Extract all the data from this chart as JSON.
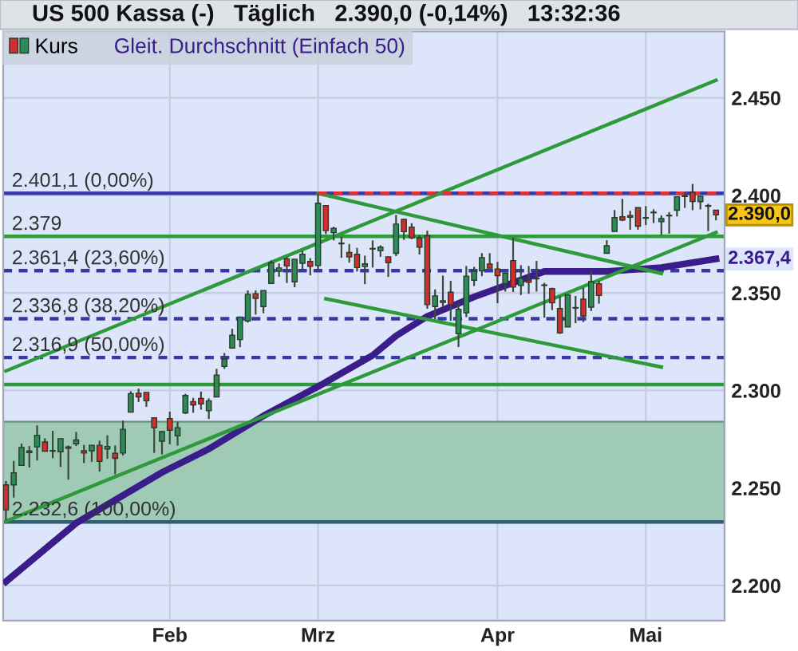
{
  "chart_data": {
    "type": "candlestick",
    "title": "US 500 Kassa (-)   Täglich   2.390,0 (-0,14%)   13:32:36",
    "categories": [
      null,
      null,
      null,
      null,
      null,
      null,
      null,
      null,
      null,
      null,
      null,
      null,
      null,
      null,
      null,
      null,
      null,
      null,
      null,
      null,
      null,
      "Feb",
      null,
      null,
      null,
      null,
      null,
      null,
      null,
      null,
      null,
      null,
      null,
      null,
      null,
      null,
      null,
      null,
      null,
      null,
      "Mrz",
      null,
      null,
      null,
      null,
      null,
      null,
      null,
      null,
      null,
      null,
      null,
      null,
      null,
      null,
      null,
      null,
      null,
      null,
      null,
      null,
      null,
      null,
      "Apr",
      null,
      null,
      null,
      null,
      null,
      null,
      null,
      null,
      null,
      null,
      null,
      null,
      null,
      null,
      null,
      null,
      null,
      null,
      "Mai",
      null,
      null,
      null,
      null,
      null,
      null,
      null,
      null,
      null
    ],
    "ylim": [
      2182,
      2484
    ],
    "yticks": [
      {
        "value": 2200,
        "label": "2.200"
      },
      {
        "value": 2250,
        "label": "2.250"
      },
      {
        "value": 2300,
        "label": "2.300"
      },
      {
        "value": 2350,
        "label": "2.350"
      },
      {
        "value": 2400,
        "label": "2.400"
      },
      {
        "value": 2450,
        "label": "2.450"
      }
    ],
    "grid": true,
    "legend": "top left",
    "series": [
      {
        "name": "Kurs",
        "colors": [
          "#d62c2c",
          "#2e8b57",
          "#2e8b57",
          "#2e8b57",
          "#2e8b57",
          "#d62c2c",
          "#d62c2c",
          "#2e8b57",
          "#d62c2c",
          "#2e8b57",
          "#d62c2c",
          "#2e8b57",
          "#d62c2c",
          "#2e8b57",
          "#d62c2c",
          "#2e8b57",
          "#2e8b57",
          "#d62c2c",
          "#d62c2c",
          "#d62c2c",
          "#2e8b57",
          "#d62c2c",
          "#2e8b57",
          "#2e8b57",
          "#d62c2c",
          "#d62c2c",
          "#2e8b57",
          "#2e8b57",
          "#2e8b57",
          "#2e8b57",
          "#2e8b57",
          "#2e8b57",
          "#d62c2c",
          "#2e8b57",
          "#2e8b57",
          "#2e8b57",
          "#d62c2c",
          "#2e8b57",
          "#2e8b57",
          "#d62c2c",
          "#2e8b57",
          "#d62c2c",
          "#2e8b57",
          "#2e8b57",
          "#d62c2c",
          "#d62c2c",
          "#2e8b57",
          "#2e8b57",
          "#2e8b57",
          "#d62c2c",
          "#2e8b57",
          "#d62c2c",
          "#d62c2c",
          "#d62c2c",
          "#d62c2c",
          "#2e8b57",
          "#2e8b57",
          "#d62c2c",
          "#2e8b57",
          "#2e8b57",
          "#2e8b57",
          "#2e8b57",
          "#d62c2c",
          "#d62c2c",
          "#2e8b57",
          "#d62c2c",
          "#2e8b57",
          "#d62c2c",
          "#2e8b57",
          "#d62c2c",
          "#d62c2c",
          "#d62c2c",
          "#2e8b57",
          "#d62c2c",
          "#d62c2c",
          "#2e8b57",
          "#d62c2c",
          "#2e8b57",
          "#2e8b57",
          "#d62c2c",
          "#d62c2c",
          "#d62c2c",
          "#d62c2c",
          "#2e8b57",
          "#2e8b57",
          "#d62c2c",
          "#2e8b57",
          "#d62c2c",
          "#d62c2c",
          "#2e8b57",
          "#d62c2c",
          "#d62c2c"
        ],
        "ohlc": [
          [
            2251.6,
            2253.6,
            2233.6,
            2238.8
          ],
          [
            2251.6,
            2263.9,
            2245.1,
            2257.8
          ],
          [
            2261.6,
            2272.8,
            2261.6,
            2270.8
          ],
          [
            2268.2,
            2271.5,
            2260.5,
            2269.0
          ],
          [
            2271.1,
            2282.1,
            2264.1,
            2277.0
          ],
          [
            2273.6,
            2275.5,
            2268.8,
            2268.9
          ],
          [
            2269.0,
            2279.3,
            2265.3,
            2268.9
          ],
          [
            2268.6,
            2275.3,
            2260.8,
            2275.3
          ],
          [
            2271.1,
            2271.8,
            2254.3,
            2270.4
          ],
          [
            2272.7,
            2278.7,
            2271.5,
            2274.6
          ],
          [
            2269.1,
            2272.1,
            2262.8,
            2267.9
          ],
          [
            2269.1,
            2272.0,
            2263.4,
            2271.9
          ],
          [
            2271.9,
            2274.3,
            2258.4,
            2263.7
          ],
          [
            2270.0,
            2277.0,
            2265.0,
            2271.3
          ],
          [
            2267.8,
            2271.8,
            2257.0,
            2265.2
          ],
          [
            2267.9,
            2284.6,
            2266.7,
            2280.1
          ],
          [
            2288.9,
            2299.6,
            2288.9,
            2298.4
          ],
          [
            2298.6,
            2301.0,
            2294.1,
            2296.7
          ],
          [
            2299.0,
            2299.0,
            2291.6,
            2294.7
          ],
          [
            2286.0,
            2286.0,
            2268.0,
            2280.9
          ],
          [
            2274.0,
            2279.1,
            2267.2,
            2278.9
          ],
          [
            2285.6,
            2289.1,
            2272.4,
            2279.6
          ],
          [
            2276.7,
            2284.0,
            2271.7,
            2280.9
          ],
          [
            2288.5,
            2298.3,
            2287.9,
            2297.4
          ],
          [
            2294.3,
            2296.2,
            2288.6,
            2292.6
          ],
          [
            2295.9,
            2299.4,
            2290.2,
            2293.1
          ],
          [
            2289.6,
            2295.9,
            2285.4,
            2294.7
          ],
          [
            2296.7,
            2311.1,
            2296.6,
            2307.9
          ],
          [
            2312.3,
            2319.2,
            2311.1,
            2316.1
          ],
          [
            2321.7,
            2331.6,
            2321.4,
            2328.3
          ],
          [
            2326.1,
            2337.6,
            2322.2,
            2337.6
          ],
          [
            2335.6,
            2351.3,
            2334.8,
            2349.3
          ],
          [
            2349.6,
            2351.3,
            2338.9,
            2347.2
          ],
          [
            2343.0,
            2351.2,
            2339.6,
            2351.2
          ],
          [
            2354.9,
            2366.7,
            2354.9,
            2365.4
          ],
          [
            2361.1,
            2365.1,
            2358.3,
            2362.8
          ],
          [
            2367.5,
            2368.3,
            2355.1,
            2363.8
          ],
          [
            2355.7,
            2367.3,
            2352.9,
            2367.3
          ],
          [
            2365.2,
            2371.5,
            2361.9,
            2369.8
          ],
          [
            2366.1,
            2367.8,
            2359.0,
            2363.6
          ],
          [
            2364.0,
            2401.1,
            2362.0,
            2396.0
          ],
          [
            2394.8,
            2394.8,
            2380.2,
            2381.9
          ],
          [
            2380.9,
            2383.9,
            2376.9,
            2383.1
          ],
          [
            2375.2,
            2378.8,
            2368.0,
            2375.3
          ],
          [
            2370.7,
            2375.1,
            2365.5,
            2368.4
          ],
          [
            2369.8,
            2373.1,
            2361.0,
            2363.0
          ],
          [
            2363.5,
            2369.1,
            2354.5,
            2364.9
          ],
          [
            2372.5,
            2376.9,
            2363.0,
            2372.6
          ],
          [
            2371.6,
            2374.4,
            2368.5,
            2373.5
          ],
          [
            2368.5,
            2368.6,
            2358.2,
            2365.5
          ],
          [
            2370.3,
            2390.0,
            2368.9,
            2385.3
          ],
          [
            2387.7,
            2388.1,
            2377.2,
            2381.4
          ],
          [
            2383.7,
            2385.7,
            2377.6,
            2378.3
          ],
          [
            2378.2,
            2379.6,
            2369.7,
            2373.5
          ],
          [
            2379.3,
            2381.9,
            2341.9,
            2344.0
          ],
          [
            2343.0,
            2351.8,
            2336.5,
            2348.5
          ],
          [
            2345.1,
            2358.9,
            2342.1,
            2346.0
          ],
          [
            2350.4,
            2356.2,
            2335.7,
            2344.0
          ],
          [
            2329.1,
            2344.9,
            2322.3,
            2341.6
          ],
          [
            2339.8,
            2363.8,
            2337.6,
            2358.6
          ],
          [
            2356.5,
            2363.4,
            2353.5,
            2361.1
          ],
          [
            2361.3,
            2370.4,
            2358.6,
            2368.1
          ],
          [
            2364.8,
            2370.4,
            2362.6,
            2362.7
          ],
          [
            2362.3,
            2365.9,
            2344.7,
            2358.8
          ],
          [
            2354.8,
            2360.5,
            2350.7,
            2360.2
          ],
          [
            2366.6,
            2378.4,
            2350.5,
            2353.0
          ],
          [
            2353.8,
            2364.2,
            2348.9,
            2357.5
          ],
          [
            2356.6,
            2363.8,
            2349.6,
            2355.5
          ],
          [
            2357.2,
            2366.4,
            2350.7,
            2357.2
          ],
          [
            2353.9,
            2355.2,
            2337.3,
            2353.8
          ],
          [
            2352.2,
            2352.7,
            2341.2,
            2344.9
          ],
          [
            2342.0,
            2348.3,
            2329.0,
            2329.5
          ],
          [
            2332.6,
            2349.1,
            2332.5,
            2349.0
          ],
          [
            2342.5,
            2348.4,
            2334.5,
            2342.2
          ],
          [
            2346.8,
            2352.6,
            2335.1,
            2338.2
          ],
          [
            2342.7,
            2361.4,
            2340.7,
            2355.8
          ],
          [
            2354.7,
            2356.2,
            2344.5,
            2348.7
          ],
          [
            2370.3,
            2377.0,
            2370.3,
            2374.2
          ],
          [
            2381.5,
            2392.5,
            2381.2,
            2388.6
          ],
          [
            2389.0,
            2398.2,
            2386.8,
            2387.4
          ],
          [
            2389.7,
            2392.1,
            2382.4,
            2388.8
          ],
          [
            2393.7,
            2393.7,
            2382.4,
            2384.2
          ],
          [
            2388.5,
            2394.5,
            2384.8,
            2388.3
          ],
          [
            2391.1,
            2392.9,
            2385.8,
            2391.2
          ],
          [
            2386.5,
            2389.8,
            2379.8,
            2388.1
          ],
          [
            2389.8,
            2391.4,
            2380.4,
            2389.5
          ],
          [
            2392.4,
            2399.3,
            2389.2,
            2399.3
          ],
          [
            2399.9,
            2401.4,
            2393.6,
            2399.4
          ],
          [
            2401.6,
            2405.9,
            2392.4,
            2396.9
          ],
          [
            2396.8,
            2399.7,
            2392.8,
            2399.6
          ],
          [
            2394.8,
            2395.7,
            2381.7,
            2394.4
          ],
          [
            2392.4,
            2392.4,
            2387.2,
            2390.0
          ]
        ]
      },
      {
        "name": "Gleit. Durchschnitt (Einfach 50)",
        "type": "line",
        "color": "#3a1d8a",
        "values": [
          2202,
          null,
          null,
          null,
          null,
          null,
          null,
          null,
          null,
          2232,
          null,
          null,
          null,
          null,
          null,
          null,
          null,
          null,
          null,
          null,
          2258,
          null,
          null,
          null,
          null,
          null,
          2270,
          null,
          null,
          null,
          null,
          null,
          null,
          2287,
          null,
          null,
          null,
          null,
          null,
          null,
          2302,
          null,
          null,
          null,
          null,
          null,
          null,
          2318,
          null,
          null,
          2328,
          null,
          null,
          null,
          2338,
          null,
          null,
          null,
          null,
          null,
          2348,
          null,
          null,
          null,
          null,
          null,
          null,
          null,
          null,
          2361,
          null,
          null,
          null,
          null,
          null,
          null,
          null,
          2361,
          null,
          null,
          null,
          null,
          null,
          null,
          2363,
          null,
          null,
          null,
          null,
          null,
          null,
          2367.4
        ]
      },
      {
        "type": "line",
        "color": "#2e9a3a",
        "values": [
          2310,
          null,
          null,
          null,
          null,
          null,
          null,
          null,
          null,
          null,
          null,
          null,
          null,
          null,
          null,
          null,
          null,
          null,
          null,
          null,
          null,
          null,
          null,
          null,
          null,
          null,
          null,
          null,
          null,
          null,
          null,
          null,
          null,
          null,
          null,
          null,
          null,
          null,
          null,
          null,
          null,
          null,
          null,
          null,
          null,
          null,
          null,
          null,
          null,
          null,
          null,
          null,
          null,
          null,
          null,
          null,
          null,
          null,
          null,
          null,
          null,
          null,
          null,
          null,
          null,
          null,
          null,
          null,
          null,
          null,
          null,
          null,
          null,
          null,
          null,
          null,
          null,
          null,
          null,
          null,
          null,
          null,
          null,
          null,
          null,
          null,
          null,
          null,
          null,
          null,
          null,
          2459
        ]
      },
      {
        "type": "line",
        "color": "#2e9a3a",
        "values": [
          2233,
          null,
          null,
          null,
          null,
          null,
          null,
          null,
          null,
          null,
          null,
          null,
          null,
          null,
          null,
          null,
          null,
          null,
          null,
          null,
          null,
          null,
          null,
          null,
          null,
          null,
          null,
          null,
          null,
          null,
          null,
          null,
          null,
          null,
          null,
          null,
          null,
          null,
          null,
          null,
          null,
          null,
          null,
          null,
          null,
          null,
          null,
          null,
          null,
          null,
          null,
          null,
          null,
          null,
          null,
          null,
          null,
          null,
          null,
          null,
          null,
          null,
          null,
          null,
          null,
          null,
          null,
          null,
          null,
          null,
          null,
          null,
          null,
          null,
          null,
          null,
          null,
          null,
          null,
          null,
          null,
          null,
          null,
          null,
          null,
          null,
          null,
          null,
          null,
          null,
          null,
          2381
        ]
      },
      {
        "type": "line",
        "color": "#2e9a3a",
        "values": [
          null,
          null,
          null,
          null,
          null,
          null,
          null,
          null,
          null,
          null,
          null,
          null,
          null,
          null,
          null,
          null,
          null,
          null,
          null,
          null,
          null,
          null,
          null,
          null,
          null,
          null,
          null,
          null,
          null,
          null,
          null,
          null,
          null,
          null,
          null,
          null,
          null,
          null,
          null,
          null,
          2401,
          null,
          null,
          null,
          null,
          null,
          null,
          null,
          null,
          null,
          null,
          null,
          null,
          null,
          null,
          null,
          null,
          null,
          null,
          null,
          null,
          null,
          null,
          null,
          null,
          null,
          null,
          null,
          null,
          null,
          null,
          null,
          null,
          null,
          null,
          null,
          null,
          null,
          null,
          null,
          null,
          null,
          null,
          null,
          2360,
          null,
          null,
          null,
          null,
          null,
          null,
          null
        ]
      },
      {
        "type": "line",
        "color": "#2e9a3a",
        "values": [
          null,
          null,
          null,
          null,
          null,
          null,
          null,
          null,
          null,
          null,
          null,
          null,
          null,
          null,
          null,
          null,
          null,
          null,
          null,
          null,
          null,
          null,
          null,
          null,
          null,
          null,
          null,
          null,
          null,
          null,
          null,
          null,
          null,
          null,
          null,
          null,
          null,
          null,
          null,
          null,
          null,
          2347,
          null,
          null,
          null,
          null,
          null,
          null,
          null,
          null,
          null,
          null,
          null,
          null,
          null,
          null,
          null,
          null,
          null,
          null,
          null,
          null,
          null,
          null,
          null,
          null,
          null,
          null,
          null,
          null,
          null,
          null,
          null,
          null,
          null,
          null,
          null,
          null,
          null,
          null,
          null,
          null,
          null,
          null,
          2312,
          null,
          null,
          null,
          null,
          null,
          null,
          null
        ]
      },
      {
        "type": "line",
        "color": "#e03030",
        "line_style": "dashed",
        "values": [
          null,
          null,
          null,
          null,
          null,
          null,
          null,
          null,
          null,
          null,
          null,
          null,
          null,
          null,
          null,
          null,
          null,
          null,
          null,
          null,
          null,
          null,
          null,
          null,
          null,
          null,
          null,
          null,
          null,
          null,
          null,
          null,
          null,
          null,
          null,
          null,
          null,
          null,
          null,
          null,
          2401.1,
          null,
          null,
          null,
          null,
          null,
          null,
          null,
          null,
          null,
          null,
          null,
          null,
          null,
          null,
          null,
          null,
          null,
          null,
          null,
          null,
          null,
          null,
          null,
          null,
          null,
          null,
          null,
          null,
          null,
          null,
          null,
          null,
          null,
          null,
          null,
          null,
          null,
          null,
          null,
          null,
          null,
          null,
          null,
          null,
          null,
          null,
          null,
          null,
          null,
          null,
          2401.1
        ]
      }
    ],
    "ref_lines": [
      {
        "axis": "y",
        "value": 2401.1,
        "label": "2.401,1 (0,00%)",
        "color": "#3838a8"
      },
      {
        "axis": "y",
        "value": 2379,
        "label": "2.379",
        "color": "#2e9a3a"
      },
      {
        "axis": "y",
        "value": 2361.4,
        "label": "2.361,4 (23,60%)",
        "color": "#3838a8",
        "line_style": "dashed"
      },
      {
        "axis": "y",
        "value": 2336.8,
        "label": "2.336,8 (38,20%)",
        "color": "#3838a8",
        "line_style": "dashed"
      },
      {
        "axis": "y",
        "value": 2316.9,
        "label": "2.316,9 (50,00%)",
        "color": "#3838a8",
        "line_style": "dashed"
      },
      {
        "axis": "y",
        "value": 2303,
        "color": "#2e9a3a"
      },
      {
        "axis": "y",
        "value": 2232.6,
        "label": "2.232,6 (100,00%)",
        "color": "#2f5f70"
      }
    ],
    "bands": [
      {
        "axis": "y",
        "from": 2232.6,
        "to": 2284,
        "color": "#9fcab6"
      }
    ],
    "annotations": [
      "2.390,0",
      "2.367,4"
    ]
  }
}
